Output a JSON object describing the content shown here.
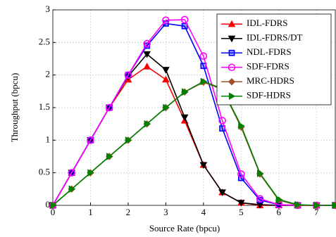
{
  "chart_data": {
    "type": "line",
    "xlabel": "Source Rate (bpcu)",
    "ylabel": "Throughput (bpcu)",
    "x": [
      0,
      0.5,
      1,
      1.5,
      2,
      2.5,
      3,
      3.5,
      4,
      4.5,
      5,
      5.5,
      6,
      6.5,
      7,
      7.5
    ],
    "xlim": [
      0,
      7.5
    ],
    "xticks": [
      0,
      1,
      2,
      3,
      4,
      5,
      6,
      7
    ],
    "ylim": [
      0,
      3
    ],
    "yticks": [
      0,
      0.5,
      1,
      1.5,
      2,
      2.5,
      3
    ],
    "grid": true,
    "legend": "upper right",
    "series": [
      {
        "name": "IDL-FDRS",
        "color": "#ff0000",
        "marker": "triangle-up",
        "values": [
          0,
          0.5,
          1,
          1.5,
          1.93,
          2.13,
          1.93,
          1.3,
          0.62,
          0.2,
          0.04,
          0,
          0,
          0,
          0,
          0
        ]
      },
      {
        "name": "IDL-FDRS/DT",
        "color": "#000000",
        "marker": "triangle-down",
        "values": [
          0,
          0.5,
          1,
          1.5,
          1.98,
          2.32,
          2.08,
          1.35,
          0.62,
          0.2,
          0.04,
          0.01,
          0,
          0,
          0,
          0
        ]
      },
      {
        "name": "NDL-FDRS",
        "color": "#0000ff",
        "marker": "square",
        "values": [
          0,
          0.5,
          1,
          1.5,
          2,
          2.45,
          2.79,
          2.75,
          2.14,
          1.18,
          0.42,
          0.08,
          0.01,
          0,
          0,
          0
        ]
      },
      {
        "name": "SDF-FDRS",
        "color": "#ff00ff",
        "marker": "circle",
        "values": [
          0,
          0.5,
          1,
          1.5,
          2,
          2.48,
          2.84,
          2.85,
          2.29,
          1.3,
          0.48,
          0.1,
          0.01,
          0,
          0,
          0
        ]
      },
      {
        "name": "MRC-HDRS",
        "color": "#a0522d",
        "marker": "diamond",
        "values": [
          0,
          0.25,
          0.5,
          0.75,
          1,
          1.25,
          1.5,
          1.74,
          1.89,
          1.78,
          1.2,
          0.48,
          0.08,
          0,
          0,
          0
        ]
      },
      {
        "name": "SDF-HDRS",
        "color": "#008000",
        "marker": "triangle-right",
        "values": [
          0,
          0.25,
          0.5,
          0.75,
          1,
          1.25,
          1.5,
          1.74,
          1.9,
          1.79,
          1.22,
          0.49,
          0.09,
          0.01,
          0,
          0
        ]
      }
    ]
  }
}
